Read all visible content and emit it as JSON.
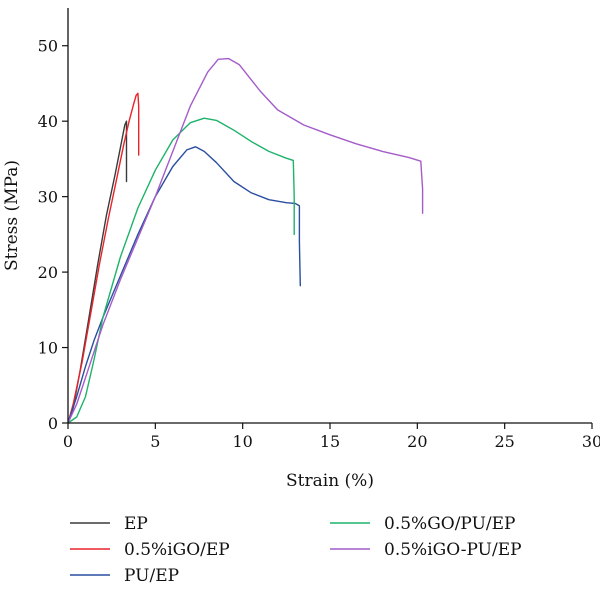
{
  "chart_data": {
    "type": "line",
    "xlabel": "Strain (%)",
    "ylabel": "Stress (MPa)",
    "xlim": [
      0,
      30
    ],
    "ylim": [
      0,
      55
    ],
    "xticks": [
      0,
      5,
      10,
      15,
      20,
      25,
      30
    ],
    "yticks": [
      0,
      10,
      20,
      30,
      40,
      50
    ],
    "grid": false,
    "legend_position": "bottom",
    "series": [
      {
        "name": "EP",
        "color": "#3a3a3a",
        "x": [
          0,
          0.3,
          0.7,
          1.2,
          1.7,
          2.2,
          2.7,
          3.0,
          3.25,
          3.35,
          3.35,
          3.35
        ],
        "y": [
          0,
          2,
          7,
          14,
          21,
          27.5,
          33,
          36.5,
          39.5,
          40.0,
          36,
          32
        ]
      },
      {
        "name": "0.5%iGO/EP",
        "color": "#e8242a",
        "x": [
          0,
          0.3,
          0.8,
          1.3,
          1.8,
          2.3,
          2.8,
          3.2,
          3.5,
          3.75,
          3.9,
          4.0,
          4.05,
          4.05,
          4.05
        ],
        "y": [
          0,
          2.5,
          8,
          14.5,
          21,
          27,
          32.5,
          37,
          40,
          42.2,
          43.4,
          43.7,
          42,
          38,
          35.5
        ]
      },
      {
        "name": "PU/EP",
        "color": "#2a4fa0",
        "x": [
          0,
          0.5,
          1.0,
          1.5,
          2.0,
          3.0,
          4.0,
          5.0,
          6.0,
          6.8,
          7.3,
          7.8,
          8.5,
          9.5,
          10.5,
          11.5,
          12.5,
          13.0,
          13.25,
          13.25,
          13.3
        ],
        "y": [
          0,
          3.5,
          7.5,
          11,
          14,
          19.5,
          25,
          30,
          34,
          36.2,
          36.6,
          36,
          34.5,
          32,
          30.5,
          29.6,
          29.2,
          29.1,
          28.8,
          24,
          18.2
        ]
      },
      {
        "name": "0.5%GO/PU/EP",
        "color": "#1db36a",
        "x": [
          0,
          0.5,
          1.0,
          1.5,
          2.0,
          3.0,
          4.0,
          5.0,
          6.0,
          7.0,
          7.8,
          8.5,
          9.5,
          10.5,
          11.5,
          12.5,
          12.9,
          12.95,
          12.95
        ],
        "y": [
          0,
          0.8,
          3.5,
          8.5,
          14,
          22,
          28.5,
          33.5,
          37.5,
          39.8,
          40.4,
          40.1,
          38.8,
          37.3,
          36,
          35.1,
          34.8,
          30,
          25
        ]
      },
      {
        "name": "0.5%iGO-PU/EP",
        "color": "#a45cc9",
        "x": [
          0,
          0.5,
          1.0,
          1.5,
          2.0,
          3.0,
          4.0,
          5.0,
          6.0,
          7.0,
          8.0,
          8.6,
          9.2,
          9.8,
          11.0,
          12.0,
          13.5,
          15.0,
          16.5,
          18.0,
          19.5,
          20.2,
          20.3,
          20.3
        ],
        "y": [
          0,
          2.5,
          6,
          9.5,
          13,
          19,
          24.5,
          30,
          36,
          42,
          46.5,
          48.2,
          48.3,
          47.5,
          44,
          41.5,
          39.5,
          38.2,
          37,
          36,
          35.2,
          34.7,
          31,
          27.8
        ]
      }
    ]
  }
}
